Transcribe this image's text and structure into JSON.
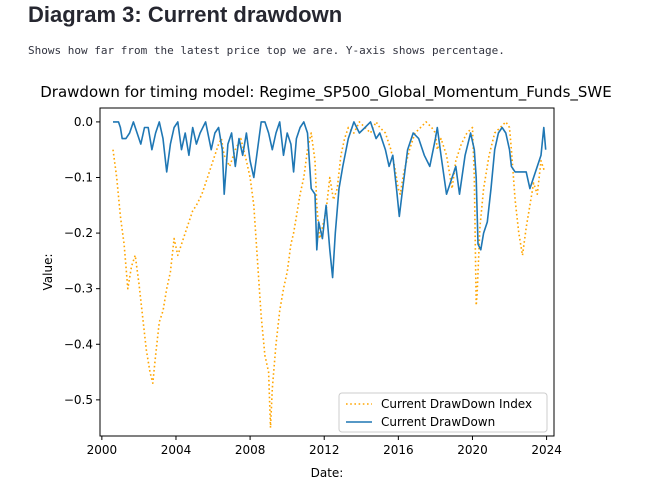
{
  "page": {
    "heading": "Diagram 3: Current drawdown",
    "description": "Shows how far from the latest price top we are. Y-axis shows percentage."
  },
  "colors": {
    "index_series": "#ffa500",
    "drawdown_series": "#1f77b4"
  },
  "chart_data": {
    "type": "line",
    "title": "Drawdown for timing model: Regime_SP500_Global_Momentum_Funds_SWE",
    "xlabel": "Date:",
    "ylabel": "Value:",
    "xlim": [
      1999.9,
      2024.4
    ],
    "ylim": [
      -0.565,
      0.025
    ],
    "xticks": [
      2000,
      2004,
      2008,
      2012,
      2016,
      2020,
      2024
    ],
    "xtick_labels": [
      "2000",
      "2004",
      "2008",
      "2012",
      "2016",
      "2020",
      "2024"
    ],
    "yticks": [
      0.0,
      -0.1,
      -0.2,
      -0.3,
      -0.4,
      -0.5
    ],
    "ytick_labels": [
      "0.0",
      "−0.1",
      "−0.2",
      "−0.3",
      "−0.4",
      "−0.5"
    ],
    "grid": false,
    "legend": "lower right",
    "series": [
      {
        "name": "Current DrawDown Index",
        "style": "dotted",
        "x": [
          2000.6,
          2000.8,
          2001.0,
          2001.2,
          2001.4,
          2001.6,
          2001.8,
          2002.0,
          2002.2,
          2002.4,
          2002.6,
          2002.75,
          2002.9,
          2003.1,
          2003.3,
          2003.5,
          2003.7,
          2003.9,
          2004.1,
          2004.3,
          2004.5,
          2004.7,
          2004.9,
          2005.1,
          2005.4,
          2005.7,
          2006.0,
          2006.3,
          2006.45,
          2006.6,
          2006.9,
          2007.2,
          2007.5,
          2007.8,
          2008.0,
          2008.2,
          2008.4,
          2008.6,
          2008.8,
          2009.0,
          2009.1,
          2009.2,
          2009.4,
          2009.6,
          2009.8,
          2010.0,
          2010.2,
          2010.35,
          2010.5,
          2010.7,
          2010.9,
          2011.1,
          2011.3,
          2011.5,
          2011.6,
          2011.75,
          2011.9,
          2012.1,
          2012.3,
          2012.5,
          2012.7,
          2012.9,
          2013.1,
          2013.3,
          2013.6,
          2013.9,
          2014.2,
          2014.5,
          2014.8,
          2015.0,
          2015.3,
          2015.6,
          2015.8,
          2016.0,
          2016.1,
          2016.3,
          2016.6,
          2016.9,
          2017.2,
          2017.5,
          2017.8,
          2018.0,
          2018.1,
          2018.3,
          2018.6,
          2018.9,
          2019.1,
          2019.4,
          2019.7,
          2020.0,
          2020.1,
          2020.2,
          2020.25,
          2020.4,
          2020.6,
          2020.9,
          2021.2,
          2021.5,
          2021.8,
          2022.0,
          2022.1,
          2022.3,
          2022.5,
          2022.7,
          2022.9,
          2023.1,
          2023.3,
          2023.5,
          2023.7,
          2023.9
        ],
        "y": [
          -0.05,
          -0.1,
          -0.17,
          -0.22,
          -0.3,
          -0.26,
          -0.24,
          -0.29,
          -0.35,
          -0.41,
          -0.45,
          -0.47,
          -0.42,
          -0.36,
          -0.34,
          -0.3,
          -0.27,
          -0.21,
          -0.24,
          -0.22,
          -0.2,
          -0.18,
          -0.16,
          -0.15,
          -0.13,
          -0.1,
          -0.07,
          -0.04,
          -0.03,
          -0.06,
          -0.08,
          -0.05,
          -0.03,
          -0.07,
          -0.1,
          -0.15,
          -0.25,
          -0.35,
          -0.42,
          -0.45,
          -0.55,
          -0.48,
          -0.4,
          -0.34,
          -0.3,
          -0.27,
          -0.22,
          -0.2,
          -0.17,
          -0.13,
          -0.1,
          -0.05,
          -0.02,
          -0.07,
          -0.15,
          -0.21,
          -0.19,
          -0.16,
          -0.1,
          -0.14,
          -0.12,
          -0.06,
          -0.03,
          -0.01,
          -0.02,
          0.0,
          -0.01,
          -0.02,
          0.0,
          -0.01,
          -0.02,
          -0.05,
          -0.08,
          -0.12,
          -0.13,
          -0.09,
          -0.05,
          -0.02,
          -0.01,
          0.0,
          -0.01,
          -0.02,
          -0.05,
          -0.03,
          -0.06,
          -0.12,
          -0.07,
          -0.04,
          -0.02,
          -0.01,
          -0.1,
          -0.33,
          -0.31,
          -0.19,
          -0.12,
          -0.06,
          -0.02,
          -0.01,
          0.0,
          -0.01,
          -0.05,
          -0.14,
          -0.2,
          -0.24,
          -0.19,
          -0.15,
          -0.11,
          -0.13,
          -0.07,
          -0.09
        ]
      },
      {
        "name": "Current DrawDown",
        "style": "solid",
        "x": [
          2000.6,
          2000.9,
          2001.0,
          2001.1,
          2001.3,
          2001.5,
          2001.7,
          2001.9,
          2002.1,
          2002.3,
          2002.5,
          2002.7,
          2002.9,
          2003.1,
          2003.3,
          2003.5,
          2003.7,
          2003.9,
          2004.1,
          2004.3,
          2004.5,
          2004.7,
          2004.9,
          2005.1,
          2005.3,
          2005.6,
          2005.9,
          2006.1,
          2006.3,
          2006.5,
          2006.6,
          2006.8,
          2007.0,
          2007.2,
          2007.4,
          2007.6,
          2007.8,
          2008.0,
          2008.2,
          2008.4,
          2008.6,
          2008.8,
          2009.0,
          2009.2,
          2009.4,
          2009.6,
          2009.8,
          2010.0,
          2010.2,
          2010.35,
          2010.5,
          2010.7,
          2010.9,
          2011.1,
          2011.3,
          2011.5,
          2011.6,
          2011.7,
          2011.9,
          2012.1,
          2012.3,
          2012.45,
          2012.6,
          2012.8,
          2013.0,
          2013.3,
          2013.6,
          2013.9,
          2014.2,
          2014.5,
          2014.8,
          2015.0,
          2015.3,
          2015.5,
          2015.7,
          2015.9,
          2016.05,
          2016.2,
          2016.5,
          2016.8,
          2017.1,
          2017.4,
          2017.7,
          2018.0,
          2018.1,
          2018.3,
          2018.6,
          2018.9,
          2019.1,
          2019.3,
          2019.6,
          2019.9,
          2020.1,
          2020.2,
          2020.3,
          2020.45,
          2020.6,
          2020.8,
          2021.0,
          2021.2,
          2021.4,
          2021.6,
          2021.8,
          2022.0,
          2022.1,
          2022.3,
          2022.6,
          2022.9,
          2023.1,
          2023.3,
          2023.5,
          2023.7,
          2023.85,
          2023.95
        ],
        "y": [
          0.0,
          0.0,
          -0.01,
          -0.03,
          -0.03,
          -0.02,
          0.0,
          -0.02,
          -0.04,
          -0.01,
          -0.01,
          -0.05,
          -0.02,
          0.0,
          -0.03,
          -0.09,
          -0.04,
          -0.01,
          0.0,
          -0.05,
          -0.02,
          -0.06,
          -0.01,
          -0.04,
          -0.02,
          0.0,
          -0.05,
          -0.02,
          -0.01,
          -0.05,
          -0.13,
          -0.04,
          -0.02,
          -0.08,
          -0.03,
          -0.06,
          -0.02,
          -0.07,
          -0.1,
          -0.05,
          0.0,
          0.0,
          -0.02,
          -0.05,
          -0.02,
          0.0,
          -0.06,
          -0.02,
          -0.04,
          -0.09,
          -0.03,
          -0.01,
          0.0,
          -0.02,
          -0.12,
          -0.13,
          -0.23,
          -0.18,
          -0.21,
          -0.15,
          -0.23,
          -0.28,
          -0.2,
          -0.12,
          -0.08,
          -0.03,
          0.0,
          -0.02,
          -0.01,
          0.0,
          -0.03,
          -0.02,
          -0.05,
          -0.08,
          -0.06,
          -0.12,
          -0.17,
          -0.13,
          -0.05,
          -0.02,
          -0.03,
          -0.06,
          -0.08,
          -0.03,
          -0.01,
          -0.06,
          -0.13,
          -0.1,
          -0.08,
          -0.13,
          -0.06,
          -0.02,
          -0.05,
          -0.1,
          -0.22,
          -0.23,
          -0.2,
          -0.18,
          -0.12,
          -0.05,
          -0.02,
          -0.01,
          -0.02,
          -0.05,
          -0.08,
          -0.09,
          -0.09,
          -0.09,
          -0.12,
          -0.1,
          -0.08,
          -0.06,
          -0.01,
          -0.05
        ]
      }
    ]
  }
}
